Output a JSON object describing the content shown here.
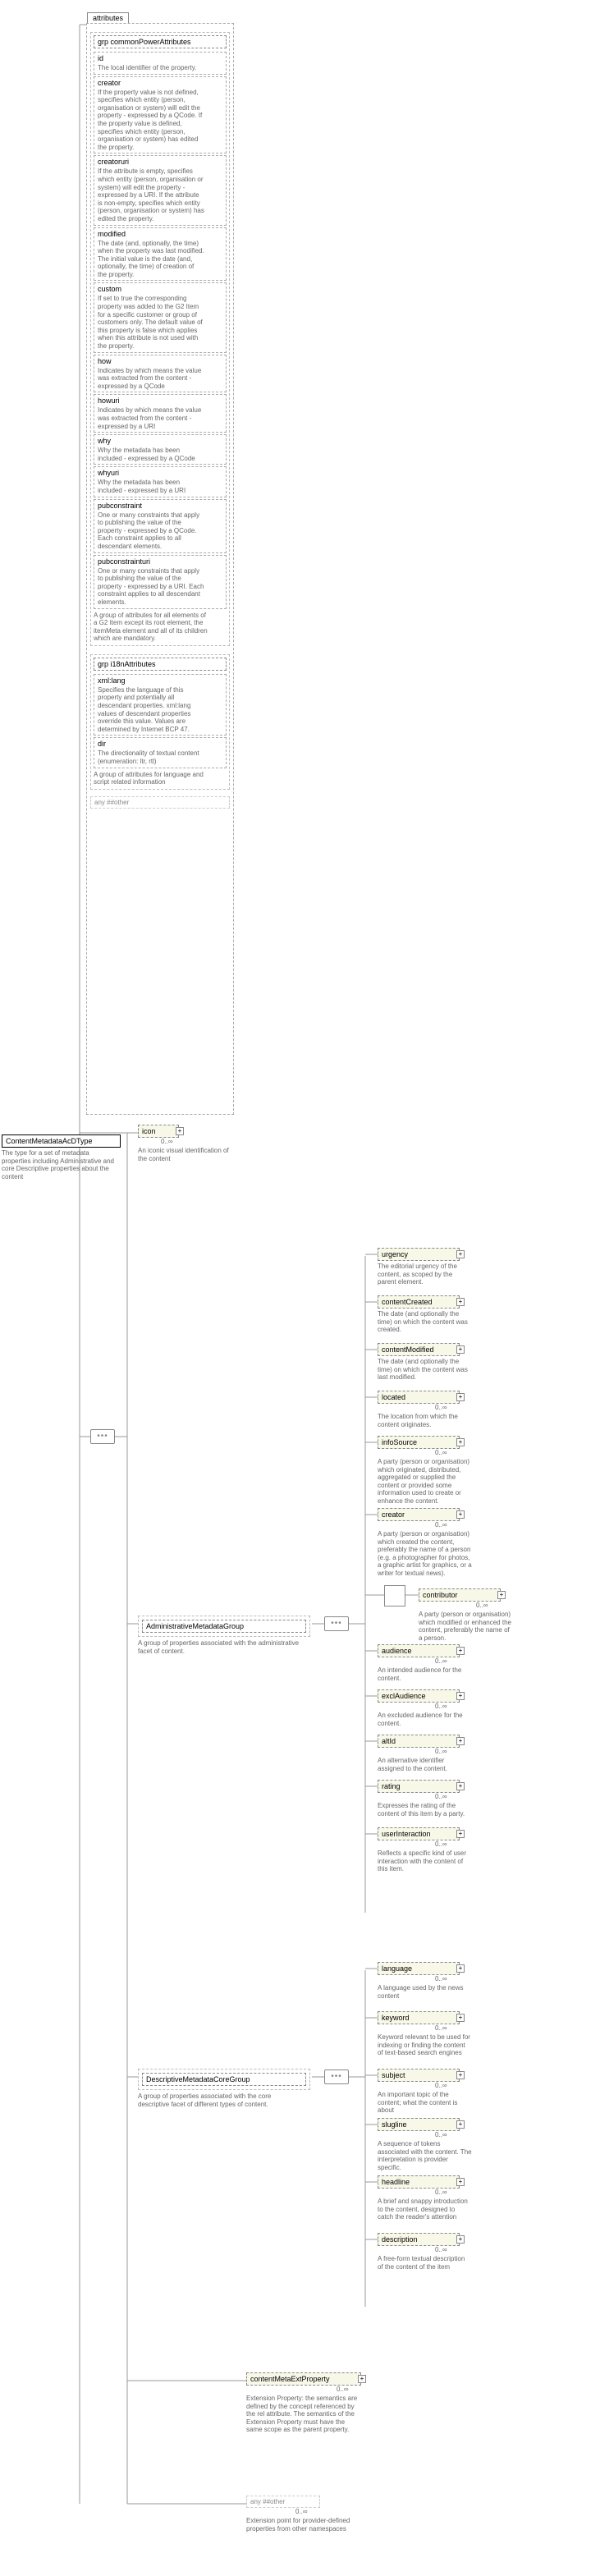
{
  "root": {
    "name": "ContentMetadataAcDType",
    "desc": "The type for a  set of metadata properties including Administrative and core Descriptive properties about the content"
  },
  "attributes_tab": "attributes",
  "commonPower": {
    "label": "grp  commonPowerAttributes",
    "desc": "A group of attributes for all elements of a G2 Item except its root element, the itemMeta element and all of its children which are mandatory.",
    "attrs": [
      {
        "name": "id",
        "desc": "The local identifier of the property."
      },
      {
        "name": "creator",
        "desc": "If the property value is not defined, specifies which entity (person, organisation or system) will edit the property - expressed by a QCode. If the property value is defined, specifies which entity (person, organisation or system) has edited the property."
      },
      {
        "name": "creatoruri",
        "desc": "If the attribute is empty, specifies which entity (person, organisation or system) will edit the property - expressed by a URI. If the attribute is non-empty, specifies which entity (person, organisation or system) has edited the property."
      },
      {
        "name": "modified",
        "desc": "The date (and, optionally, the time) when the property was last modified. The initial value is the date (and, optionally, the time) of creation of the property."
      },
      {
        "name": "custom",
        "desc": "If set to true the corresponding property was added to the G2 Item for a specific customer or group of customers only. The default value of this property is false which applies when this attribute is not used with the property."
      },
      {
        "name": "how",
        "desc": "Indicates by which means the value was extracted from the content - expressed by a QCode"
      },
      {
        "name": "howuri",
        "desc": "Indicates by which means the value was extracted from the content - expressed by a URI"
      },
      {
        "name": "why",
        "desc": "Why the metadata has been included - expressed by a QCode"
      },
      {
        "name": "whyuri",
        "desc": "Why the metadata has been included - expressed by a URI"
      },
      {
        "name": "pubconstraint",
        "desc": "One or many constraints that apply to publishing the value of the property - expressed by a QCode. Each constraint applies to all descendant elements."
      },
      {
        "name": "pubconstrainturi",
        "desc": "One or many constraints that apply to publishing the value of the property - expressed by a URI. Each constraint applies to all descendant elements."
      }
    ]
  },
  "i18n": {
    "label": "grp  i18nAttributes",
    "desc": "A group of attributes for language and script related information",
    "attrs": [
      {
        "name": "xml:lang",
        "desc": "Specifies the language of this property and potentially all descendant properties. xml:lang values of descendant properties override this value. Values are determined by Internet BCP 47."
      },
      {
        "name": "dir",
        "desc": "The directionality of textual content (enumeration: ltr, rtl)"
      }
    ],
    "any": "any  ##other"
  },
  "icon": {
    "name": "icon",
    "occurs": "0..∞",
    "desc": "An iconic visual identification of the content"
  },
  "adminGroup": {
    "name": "AdministrativeMetadataGroup",
    "desc": "A group of properties associated with the administrative facet of content.",
    "elements": [
      {
        "name": "urgency",
        "desc": "The editorial urgency of the content, as scoped by the parent element.",
        "optional": true
      },
      {
        "name": "contentCreated",
        "desc": "The date (and optionally the time) on which the content was created.",
        "optional": true
      },
      {
        "name": "contentModified",
        "desc": "The date (and optionally the time) on which the content was last modified.",
        "optional": true
      },
      {
        "name": "located",
        "desc": "The location from which the content originates.",
        "optional": true,
        "occurs": "0..∞"
      },
      {
        "name": "infoSource",
        "desc": "A party (person or organisation) which originated, distributed, aggregated or supplied the content or provided some information used to create or enhance the content.",
        "optional": true,
        "occurs": "0..∞"
      },
      {
        "name": "creator",
        "desc": "A party (person or organisation) which created the content, preferably the name of a person (e.g. a photographer for photos, a graphic artist for graphics, or a writer for textual news).",
        "optional": true,
        "occurs": "0..∞"
      },
      {
        "name": "contributor",
        "desc": "A party (person or organisation) which modified or enhanced the content, preferably the name of a person.",
        "optional": true,
        "occurs": "0..∞",
        "choice": true
      },
      {
        "name": "audience",
        "desc": "An intended audience for the content.",
        "optional": true,
        "occurs": "0..∞"
      },
      {
        "name": "exclAudience",
        "desc": "An excluded audience for the content.",
        "optional": true,
        "occurs": "0..∞"
      },
      {
        "name": "altId",
        "desc": "An alternative identifier assigned to the content.",
        "optional": true,
        "occurs": "0..∞"
      },
      {
        "name": "rating",
        "desc": "Expresses the rating of the content of this item by a party.",
        "optional": true,
        "occurs": "0..∞"
      },
      {
        "name": "userInteraction",
        "desc": "Reflects a specific kind of user interaction with the content of this item.",
        "optional": true,
        "occurs": "0..∞"
      }
    ]
  },
  "descGroup": {
    "name": "DescriptiveMetadataCoreGroup",
    "desc": "A group of properties associated with the core descriptive facet of different types of content.",
    "elements": [
      {
        "name": "language",
        "desc": "A language used by the news content",
        "optional": true,
        "occurs": "0..∞"
      },
      {
        "name": "keyword",
        "desc": "Keyword relevant to be used for indexing or finding the content of text-based search engines",
        "optional": true,
        "occurs": "0..∞"
      },
      {
        "name": "subject",
        "desc": "An important topic of the content; what the content is about",
        "optional": true,
        "occurs": "0..∞"
      },
      {
        "name": "slugline",
        "desc": "A sequence of tokens associated with the content. The interpretation is provider specific.",
        "optional": true,
        "occurs": "0..∞"
      },
      {
        "name": "headline",
        "desc": "A brief and snappy introduction to the content, designed to catch the reader's attention",
        "optional": true,
        "occurs": "0..∞"
      },
      {
        "name": "description",
        "desc": "A free-form textual description of the content of the item",
        "optional": true,
        "occurs": "0..∞"
      }
    ]
  },
  "contentMetaExt": {
    "name": "contentMetaExtProperty",
    "occurs": "0..∞",
    "desc": "Extension Property: the semantics are defined by the concept referenced by the rel attribute. The semantics of the Extension Property must have the same scope as the parent property."
  },
  "anyOther": {
    "label": "any  ##other",
    "occurs": "0..∞",
    "desc": "Extension point for provider-defined properties from other namespaces"
  },
  "colors": {
    "line": "#999999",
    "dash": "#aaaaaa",
    "text": "#000000",
    "desc": "#666666"
  }
}
